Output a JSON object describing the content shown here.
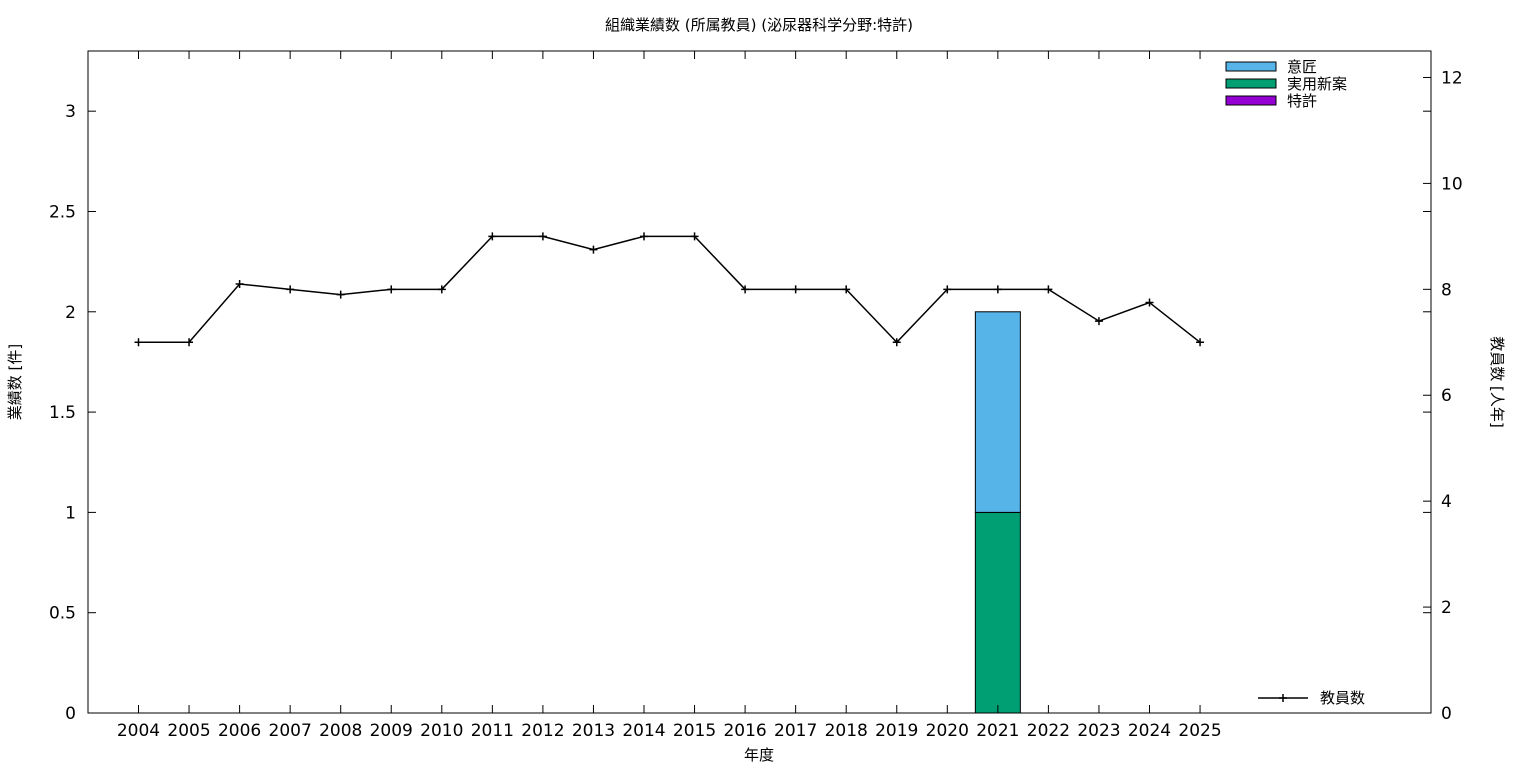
{
  "chart_data": {
    "type": "bar",
    "title": "組織業績数 (所属教員) (泌尿器科学分野:特許)",
    "xlabel": "年度",
    "ylabel": "業績数 [件]",
    "y2label": "教員数 [人年]",
    "categories": [
      "2004",
      "2005",
      "2006",
      "2007",
      "2008",
      "2009",
      "2010",
      "2011",
      "2012",
      "2013",
      "2014",
      "2015",
      "2016",
      "2017",
      "2018",
      "2019",
      "2020",
      "2021",
      "2022",
      "2023",
      "2024",
      "2025"
    ],
    "ylim": [
      0,
      3.3
    ],
    "y_ticks": [
      "0",
      "0.5",
      "1",
      "1.5",
      "2",
      "2.5",
      "3"
    ],
    "y2lim": [
      0,
      12.5
    ],
    "y2_ticks": [
      "0",
      "2",
      "4",
      "6",
      "8",
      "10",
      "12"
    ],
    "stacked": true,
    "series": [
      {
        "name": "特許",
        "color": "#9400d3",
        "values": [
          0,
          0,
          0,
          0,
          0,
          0,
          0,
          0,
          0,
          0,
          0,
          0,
          0,
          0,
          0,
          0,
          0,
          0,
          0,
          0,
          0,
          0
        ]
      },
      {
        "name": "実用新案",
        "color": "#009e73",
        "values": [
          0,
          0,
          0,
          0,
          0,
          0,
          0,
          0,
          0,
          0,
          0,
          0,
          0,
          0,
          0,
          0,
          0,
          1,
          0,
          0,
          0,
          0
        ]
      },
      {
        "name": "意匠",
        "color": "#56b4e9",
        "values": [
          0,
          0,
          0,
          0,
          0,
          0,
          0,
          0,
          0,
          0,
          0,
          0,
          0,
          0,
          0,
          0,
          0,
          1,
          0,
          0,
          0,
          0
        ]
      }
    ],
    "line_series": {
      "name": "教員数",
      "color": "#000000",
      "axis": "right",
      "values": [
        7,
        7,
        8.1,
        8,
        7.9,
        8,
        8,
        9,
        9,
        8.75,
        9,
        9,
        8,
        8,
        8,
        7,
        8,
        8,
        8,
        7.4,
        7.75,
        7
      ]
    },
    "legend": {
      "bars_position": "top-right",
      "bars_order": [
        "意匠",
        "実用新案",
        "特許"
      ],
      "line_position": "bottom-right"
    },
    "grid": false
  }
}
